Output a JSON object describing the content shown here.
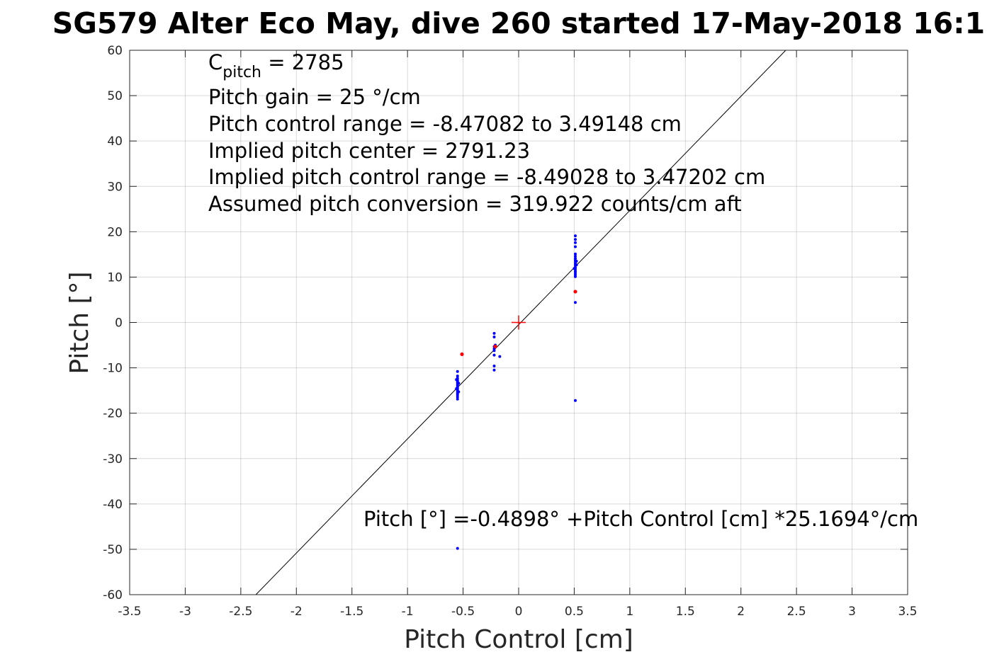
{
  "chart_data": {
    "type": "scatter",
    "title": "SG579 Alter Eco May, dive 260 started 17-May-2018 16:1",
    "xlabel": "Pitch Control [cm]",
    "ylabel": "Pitch [°]",
    "xlim": [
      -3.5,
      3.5
    ],
    "ylim": [
      -60,
      60
    ],
    "xticks": [
      -3.5,
      -3,
      -2.5,
      -2,
      -1.5,
      -1,
      -0.5,
      0,
      0.5,
      1,
      1.5,
      2,
      2.5,
      3,
      3.5
    ],
    "xtick_labels": [
      "-3.5",
      "-3",
      "-2.5",
      "-2",
      "-1.5",
      "-1",
      "-0.5",
      "0",
      "0.5",
      "1",
      "1.5",
      "2",
      "2.5",
      "3",
      "3.5"
    ],
    "yticks": [
      -60,
      -50,
      -40,
      -30,
      -20,
      -10,
      0,
      10,
      20,
      30,
      40,
      50,
      60
    ],
    "ytick_labels": [
      "-60",
      "-50",
      "-40",
      "-30",
      "-20",
      "-10",
      "0",
      "10",
      "20",
      "30",
      "40",
      "50",
      "60"
    ],
    "grid": true,
    "annotations": {
      "c_pitch_prefix": "C",
      "c_pitch_sub": "pitch",
      "c_pitch_value": " = 2785",
      "lines": [
        "Pitch gain = 25 °/cm",
        "Pitch control range = -8.47082 to 3.49148 cm",
        "Implied pitch center = 2791.23",
        "Implied pitch control range = -8.49028 to 3.47202 cm",
        "Assumed pitch conversion = 319.922 counts/cm aft"
      ],
      "fit_label": "Pitch [°] =-0.4898° +Pitch Control [cm] *25.1694°/cm"
    },
    "fit_line": {
      "intercept": -0.4898,
      "slope": 25.1694,
      "color": "#000000"
    },
    "center_marker": {
      "x": 0,
      "y": 0,
      "color": "#ff0000"
    },
    "series": [
      {
        "color": "#0000ff",
        "points": [
          [
            -0.55,
            -10.8
          ],
          [
            -0.55,
            -11.8
          ],
          [
            -0.55,
            -12.3
          ],
          [
            -0.55,
            -12.7
          ],
          [
            -0.55,
            -13.0
          ],
          [
            -0.55,
            -13.3
          ],
          [
            -0.55,
            -13.6
          ],
          [
            -0.55,
            -13.9
          ],
          [
            -0.55,
            -14.2
          ],
          [
            -0.55,
            -14.5
          ],
          [
            -0.55,
            -14.8
          ],
          [
            -0.55,
            -15.1
          ],
          [
            -0.55,
            -15.4
          ],
          [
            -0.55,
            -15.7
          ],
          [
            -0.55,
            -16.0
          ],
          [
            -0.55,
            -16.4
          ],
          [
            -0.55,
            -16.9
          ],
          [
            -0.56,
            -12.6
          ],
          [
            -0.54,
            -13.4
          ],
          [
            -0.56,
            -14.6
          ],
          [
            -0.54,
            -15.3
          ],
          [
            -0.55,
            -49.8
          ],
          [
            -0.22,
            -2.4
          ],
          [
            -0.22,
            -3.2
          ],
          [
            -0.22,
            -5.3
          ],
          [
            -0.22,
            -5.8
          ],
          [
            -0.22,
            -6.2
          ],
          [
            -0.22,
            -7.2
          ],
          [
            -0.22,
            -9.6
          ],
          [
            -0.22,
            -10.5
          ],
          [
            -0.17,
            -7.5
          ],
          [
            -0.21,
            -5.0
          ],
          [
            0.51,
            19.1
          ],
          [
            0.51,
            18.3
          ],
          [
            0.51,
            17.6
          ],
          [
            0.51,
            16.7
          ],
          [
            0.51,
            15.1
          ],
          [
            0.51,
            14.6
          ],
          [
            0.51,
            14.1
          ],
          [
            0.51,
            13.7
          ],
          [
            0.51,
            13.3
          ],
          [
            0.51,
            12.9
          ],
          [
            0.51,
            12.5
          ],
          [
            0.51,
            12.1
          ],
          [
            0.51,
            11.7
          ],
          [
            0.51,
            11.3
          ],
          [
            0.51,
            10.9
          ],
          [
            0.51,
            10.5
          ],
          [
            0.51,
            10.1
          ],
          [
            0.52,
            12.7
          ],
          [
            0.5,
            11.9
          ],
          [
            0.52,
            13.5
          ],
          [
            0.51,
            4.4
          ],
          [
            0.51,
            -17.2
          ]
        ]
      },
      {
        "color": "#ff0000",
        "points": [
          [
            -0.51,
            -7.0
          ],
          [
            -0.21,
            -5.3
          ],
          [
            0.51,
            6.8
          ]
        ]
      }
    ]
  }
}
